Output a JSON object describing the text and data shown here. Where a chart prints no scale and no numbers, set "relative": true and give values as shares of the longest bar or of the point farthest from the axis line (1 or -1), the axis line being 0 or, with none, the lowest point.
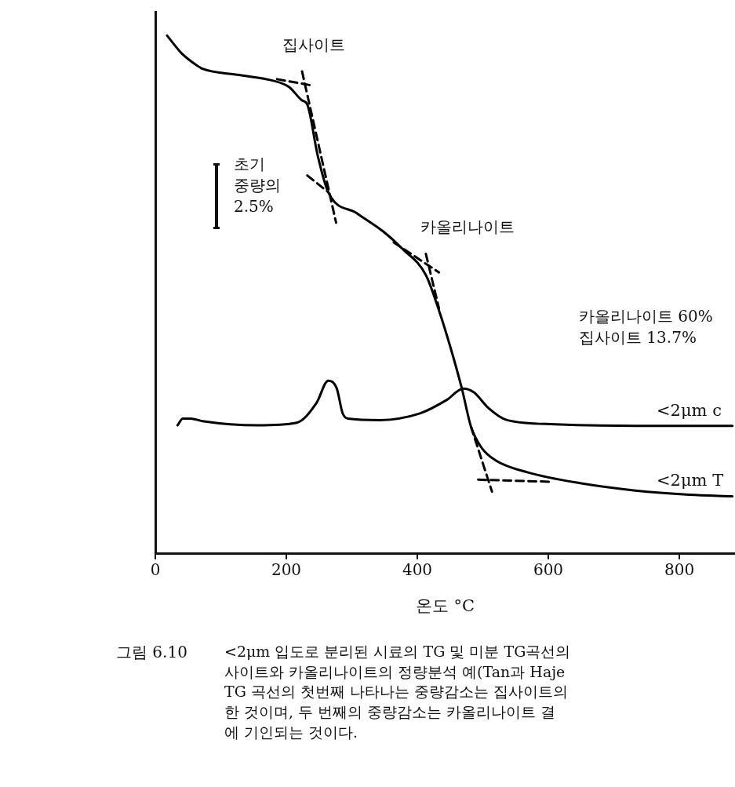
{
  "chart_data": {
    "type": "line",
    "relative": true,
    "xlabel": "온도 °C",
    "xlim": [
      0,
      885
    ],
    "xticks": [
      0,
      200,
      400,
      600,
      800
    ],
    "legend": false,
    "grid": false,
    "marker": "none",
    "line_style": "solid",
    "series": [
      {
        "name": "<2μm T",
        "color": "#000000",
        "x": [
          18,
          40,
          64,
          72,
          128,
          180,
          204,
          224,
          232,
          248,
          264,
          308,
          348,
          376,
          413,
          433,
          450,
          468,
          482,
          499,
          520,
          569,
          650,
          733,
          815,
          881
        ],
        "values": [
          1.0,
          0.966,
          0.942,
          0.936,
          0.924,
          0.913,
          0.901,
          0.875,
          0.867,
          0.768,
          0.698,
          0.657,
          0.622,
          0.59,
          0.538,
          0.47,
          0.401,
          0.319,
          0.245,
          0.203,
          0.18,
          0.157,
          0.136,
          0.122,
          0.114,
          0.111
        ]
      },
      {
        "name": "<2μm c",
        "color": "#000000",
        "x": [
          34,
          42,
          54,
          72,
          156,
          216,
          246,
          264,
          277,
          286,
          294,
          343,
          404,
          445,
          470,
          486,
          508,
          537,
          610,
          733,
          881
        ],
        "values": [
          0.248,
          0.261,
          0.261,
          0.256,
          0.248,
          0.253,
          0.291,
          0.334,
          0.319,
          0.271,
          0.261,
          0.258,
          0.271,
          0.297,
          0.319,
          0.312,
          0.282,
          0.258,
          0.25,
          0.247,
          0.247
        ]
      },
      {
        "color": "#000000",
        "line_style": "dashed",
        "x": [
          186,
          238
        ],
        "values": [
          0.916,
          0.904
        ]
      },
      {
        "color": "#000000",
        "line_style": "dashed",
        "x": [
          224,
          276
        ],
        "values": [
          0.931,
          0.639
        ]
      },
      {
        "color": "#000000",
        "line_style": "dashed",
        "x": [
          232,
          264
        ],
        "values": [
          0.73,
          0.698
        ]
      },
      {
        "color": "#000000",
        "line_style": "dashed",
        "x": [
          364,
          433
        ],
        "values": [
          0.601,
          0.543
        ]
      },
      {
        "color": "#000000",
        "line_style": "dashed",
        "x": [
          413,
          433
        ],
        "values": [
          0.579,
          0.474
        ]
      },
      {
        "color": "#000000",
        "line_style": "dashed",
        "x": [
          482,
          514
        ],
        "values": [
          0.245,
          0.12
        ]
      },
      {
        "color": "#000000",
        "line_style": "dashed",
        "x": [
          493,
          606
        ],
        "values": [
          0.143,
          0.139
        ]
      }
    ],
    "annotations": [
      "집사이트",
      "초기\n중량의\n2.5%",
      "카올리나이트",
      "카올리나이트 60%\n집사이트 13.7%",
      "그림 6.10",
      "<2μm 입도로 분리된 시료의 TG 및 미분 TG곡선의\n사이트와 카올리나이트의 정량분석 예(Tan과 Haje\nTG 곡선의 첫번째 나타나는 중량감소는 집사이트의\n한 것이며, 두 번째의 중량감소는 카올리나이트 결\n에 기인되는 것이다."
    ]
  }
}
